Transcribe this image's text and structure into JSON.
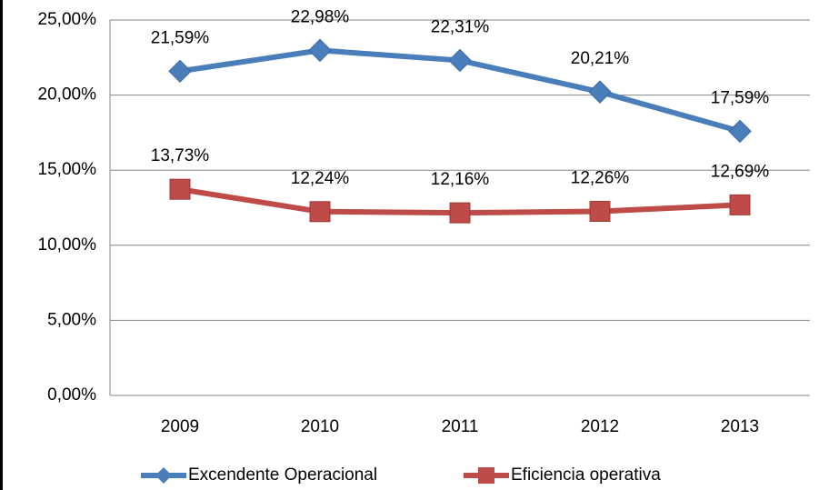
{
  "chart_data": {
    "type": "line",
    "categories": [
      "2009",
      "2010",
      "2011",
      "2012",
      "2013"
    ],
    "series": [
      {
        "name": "Excendente Operacional",
        "color": "#4a7ebb",
        "values": [
          21.59,
          22.98,
          22.31,
          20.21,
          17.59
        ],
        "value_labels": [
          "21,59%",
          "22,98%",
          "22,31%",
          "20,21%",
          "17,59%"
        ]
      },
      {
        "name": "Eficiencia operativa",
        "color": "#be4b48",
        "values": [
          13.73,
          12.24,
          12.16,
          12.26,
          12.69
        ],
        "value_labels": [
          "13,73%",
          "12,24%",
          "12,16%",
          "12,26%",
          "12,69%"
        ]
      }
    ],
    "ylim": [
      0,
      25
    ],
    "yticks": [
      {
        "value": 0,
        "label": "0,00%"
      },
      {
        "value": 5,
        "label": "5,00%"
      },
      {
        "value": 10,
        "label": "10,00%"
      },
      {
        "value": 15,
        "label": "15,00%"
      },
      {
        "value": 20,
        "label": "20,00%"
      },
      {
        "value": 25,
        "label": "25,00%"
      }
    ],
    "grid": true,
    "legend": "bottom"
  }
}
